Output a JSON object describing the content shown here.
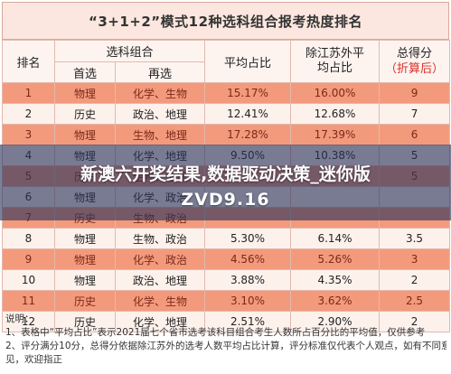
{
  "title": "“3+1+2”模式12种选科组合报考热度排名",
  "headers": {
    "rank": "排名",
    "group": "选科组合",
    "first": "首选",
    "second": "再选",
    "avg": "平均占比",
    "suzhou": "除江苏外平均占比",
    "score": "总得分",
    "score_note": "（折算后）"
  },
  "rows": [
    {
      "rank": "1",
      "first": "物理",
      "second": "化学、生物",
      "avg": "15.17%",
      "suzhou": "16.00%",
      "score": "9"
    },
    {
      "rank": "2",
      "first": "历史",
      "second": "政治、地理",
      "avg": "12.41%",
      "suzhou": "12.68%",
      "score": "7"
    },
    {
      "rank": "3",
      "first": "物理",
      "second": "生物、地理",
      "avg": "17.28%",
      "suzhou": "17.39%",
      "score": "6"
    },
    {
      "rank": "4",
      "first": "物理",
      "second": "化学、地理",
      "avg": "9.50%",
      "suzhou": "10.38%",
      "score": "5"
    },
    {
      "rank": "5",
      "first": "历史",
      "second": "生物、地理",
      "avg": "",
      "suzhou": "",
      "score": "5"
    },
    {
      "rank": "6",
      "first": "物理",
      "second": "化学、政治",
      "avg": "",
      "suzhou": "",
      "score": ""
    },
    {
      "rank": "7",
      "first": "历史",
      "second": "生物、政治",
      "avg": "",
      "suzhou": "",
      "score": ""
    },
    {
      "rank": "8",
      "first": "物理",
      "second": "生物、政治",
      "avg": "5.30%",
      "suzhou": "6.14%",
      "score": "3.5"
    },
    {
      "rank": "9",
      "first": "物理",
      "second": "化学、政治",
      "avg": "4.56%",
      "suzhou": "5.26%",
      "score": "3"
    },
    {
      "rank": "10",
      "first": "物理",
      "second": "政治、地理",
      "avg": "3.88%",
      "suzhou": "4.35%",
      "score": "2"
    },
    {
      "rank": "11",
      "first": "历史",
      "second": "化学、生物",
      "avg": "3.10%",
      "suzhou": "3.62%",
      "score": "2.5"
    },
    {
      "rank": "12",
      "first": "历史",
      "second": "化学、地理",
      "avg": "2.51%",
      "suzhou": "2.90%",
      "score": "2"
    }
  ],
  "banner": {
    "line1": "新澳六开奖结果,数据驱动决策_迷你版",
    "line2": "ZVD9.16"
  },
  "notes": {
    "label": "说明：",
    "line1": "1、表格中“平均占比”表示2021届七个省市选考该科目组合考生人数所占百分比的平均值，仅供参考",
    "line2": "2、评分满分10分，总得分依据除江苏外的选考人数平均占比计算，评分标准仅代表个人观点，如有不同意",
    "line3": "见，欢迎指正"
  }
}
